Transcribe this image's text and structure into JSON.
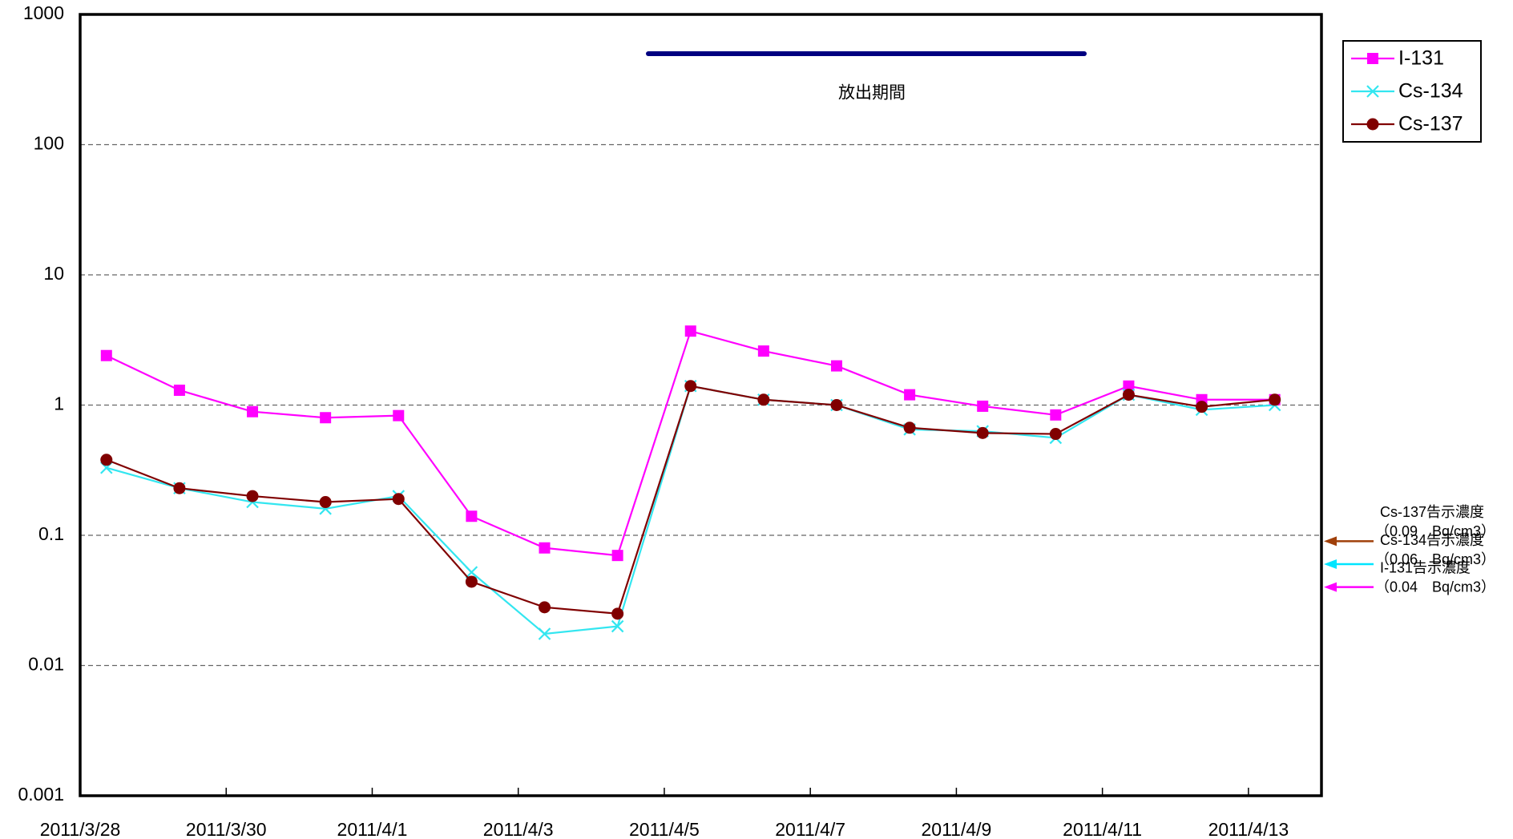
{
  "chart_data": {
    "type": "line",
    "x": [
      "2011/3/28",
      "2011/3/29",
      "2011/3/30",
      "2011/3/31",
      "2011/4/1",
      "2011/4/2",
      "2011/4/3",
      "2011/4/4",
      "2011/4/5",
      "2011/4/6",
      "2011/4/7",
      "2011/4/8",
      "2011/4/9",
      "2011/4/10",
      "2011/4/11",
      "2011/4/12",
      "2011/4/13"
    ],
    "xticks": [
      "2011/3/28",
      "2011/3/30",
      "2011/4/1",
      "2011/4/3",
      "2011/4/5",
      "2011/4/7",
      "2011/4/9",
      "2011/4/11",
      "2011/4/13"
    ],
    "ylim": [
      0.001,
      1000
    ],
    "yticks": [
      0.001,
      0.01,
      0.1,
      1,
      10,
      100,
      1000
    ],
    "log_y": true,
    "grid": true,
    "legend": "upper right",
    "series": [
      {
        "name": "I-131",
        "color": "#ff00ff",
        "marker": "square",
        "values": [
          2.4,
          1.3,
          0.89,
          0.8,
          0.83,
          0.14,
          0.08,
          0.07,
          3.7,
          2.6,
          2.0,
          1.2,
          0.98,
          0.84,
          1.4,
          1.1,
          1.1
        ]
      },
      {
        "name": "Cs-134",
        "color": "#33e6f0",
        "marker": "x",
        "values": [
          0.33,
          0.23,
          0.18,
          0.16,
          0.2,
          0.052,
          0.0175,
          0.02,
          1.4,
          1.1,
          1.0,
          0.65,
          0.63,
          0.56,
          1.2,
          0.92,
          1.0
        ]
      },
      {
        "name": "Cs-137",
        "color": "#800000",
        "marker": "circle",
        "values": [
          0.38,
          0.23,
          0.2,
          0.18,
          0.19,
          0.044,
          0.028,
          0.025,
          1.4,
          1.1,
          1.0,
          0.67,
          0.61,
          0.6,
          1.2,
          0.97,
          1.1
        ]
      }
    ],
    "annotation": "放出期間",
    "limits": [
      {
        "label": "Cs-137告示濃度",
        "note": "（0.09　Bq/cm3）",
        "value": 0.09,
        "color": "#a0400a"
      },
      {
        "label": "Cs-134告示濃度",
        "note": "（0.06　Bq/cm3）",
        "value": 0.06,
        "color": "#00e5ff"
      },
      {
        "label": "I-131告示濃度",
        "note": "（0.04　Bq/cm3）",
        "value": 0.04,
        "color": "#ff00ff"
      }
    ]
  }
}
